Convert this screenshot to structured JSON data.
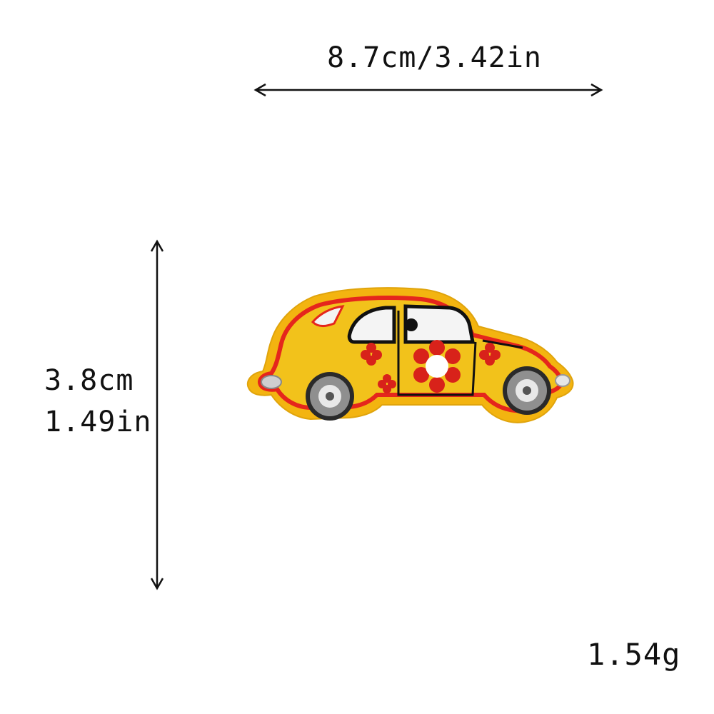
{
  "dimensions": {
    "width_label": "8.7cm/3.42in",
    "height_cm": "3.8cm",
    "height_in": "1.49in"
  },
  "weight": "1.54g",
  "patch": {
    "subject": "car-patch",
    "colors": {
      "body": "#f2c21b",
      "outline": "#e5261c",
      "border": "#f3b410",
      "window": "#f4f4f4",
      "trim": "#111111",
      "wheel": "#8f8f8f",
      "flower": "#d8221a"
    }
  }
}
